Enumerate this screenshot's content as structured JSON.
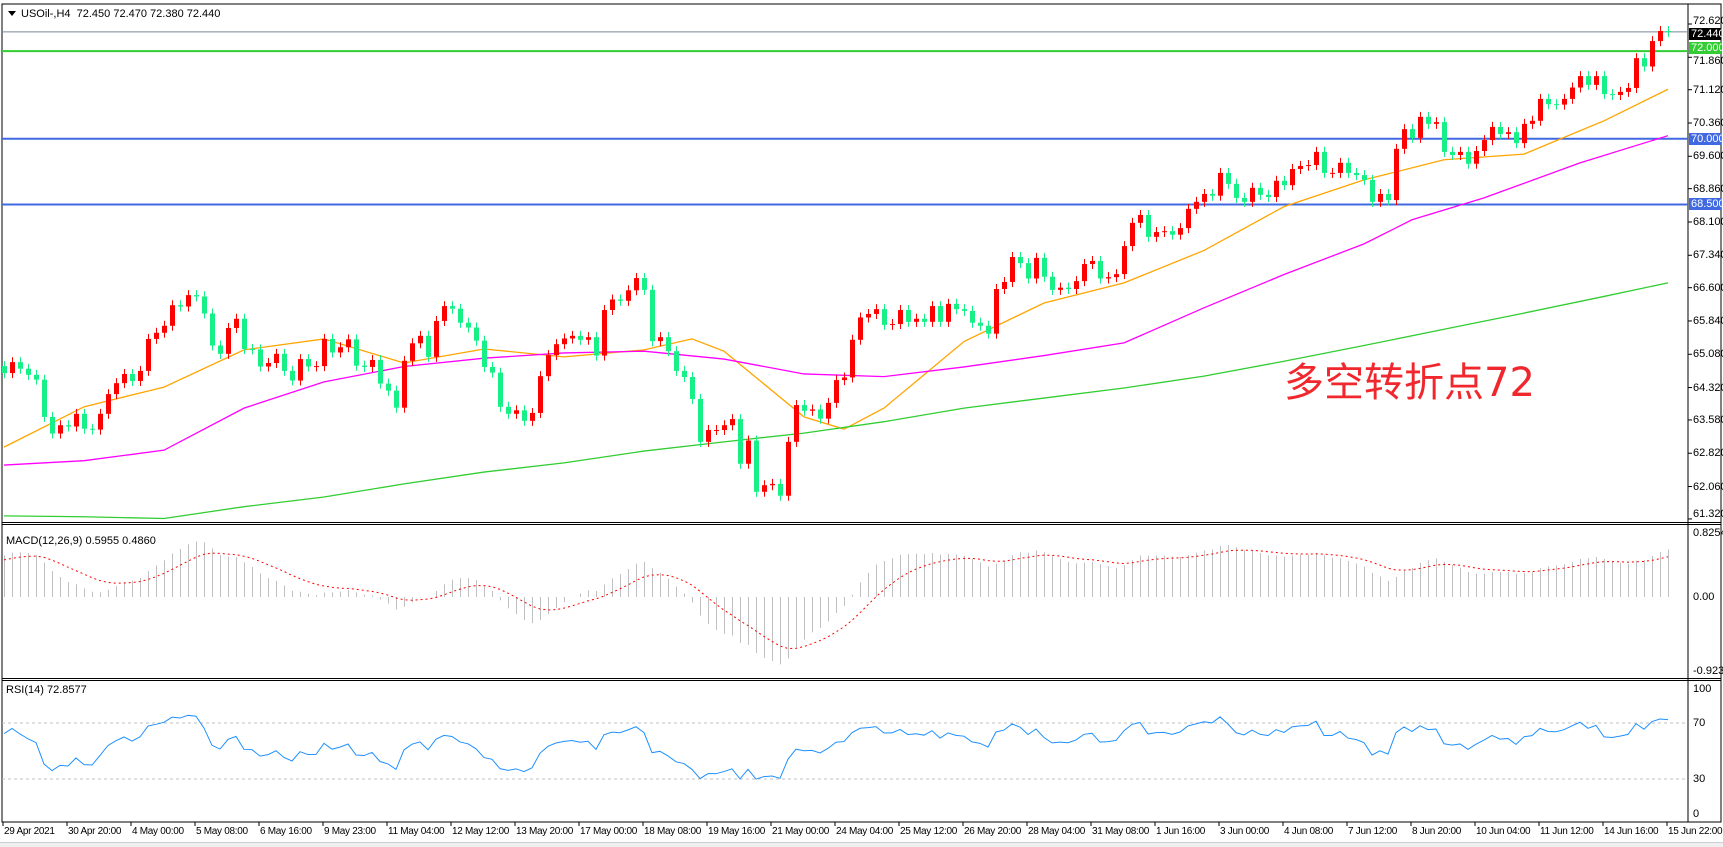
{
  "header": {
    "symbol_timeframe": "USOil-,H4",
    "ohlc_text": "72.450 72.470 72.380 72.440"
  },
  "annotation": "多空转折点72",
  "colors": {
    "bull_candle": "#ff0000",
    "bear_candle": "#17ef87",
    "ma_fast": "#ffa500",
    "ma_mid": "#ff00ff",
    "ma_slow": "#32cd32",
    "level_green": "#32cd32",
    "level_blue": "#4169e1",
    "price_line": "#778899",
    "macd_hist": "#c0c0c0",
    "macd_signal": "#ff0000",
    "rsi_line": "#1e90ff",
    "annotation": "#f0282d"
  },
  "chart_data": {
    "type": "candlestick",
    "title": "USOil-,H4",
    "first_open": 64.81,
    "close": [
      64.65,
      64.9,
      64.75,
      64.61,
      64.5,
      63.65,
      63.27,
      63.46,
      63.43,
      63.72,
      63.38,
      63.36,
      63.72,
      64.17,
      64.42,
      64.63,
      64.47,
      64.7,
      65.43,
      65.57,
      65.73,
      66.2,
      66.17,
      66.43,
      66.4,
      66.01,
      65.28,
      65.09,
      65.68,
      65.89,
      65.2,
      65.19,
      64.8,
      64.88,
      65.09,
      64.7,
      64.48,
      64.97,
      64.8,
      64.81,
      65.43,
      65.12,
      65.24,
      65.42,
      64.82,
      64.79,
      64.95,
      64.41,
      64.25,
      63.86,
      64.93,
      65.33,
      65.5,
      65.02,
      65.84,
      66.18,
      66.12,
      65.8,
      65.69,
      65.39,
      64.79,
      64.66,
      63.88,
      63.72,
      63.8,
      63.56,
      63.74,
      64.58,
      65.06,
      65.31,
      65.44,
      65.5,
      65.41,
      65.47,
      65.05,
      66.09,
      66.33,
      66.3,
      66.54,
      66.82,
      66.55,
      65.38,
      65.47,
      65.15,
      64.7,
      64.56,
      64.06,
      63.08,
      63.35,
      63.35,
      63.46,
      63.6,
      62.58,
      63.11,
      61.94,
      62.09,
      62.12,
      61.85,
      63.08,
      63.92,
      63.79,
      63.82,
      63.61,
      63.97,
      64.49,
      64.55,
      65.41,
      65.92,
      66.0,
      66.11,
      65.75,
      65.77,
      66.09,
      65.82,
      65.89,
      65.82,
      66.18,
      65.82,
      66.23,
      66.11,
      66.07,
      65.8,
      65.73,
      65.55,
      66.57,
      66.73,
      67.3,
      67.16,
      66.81,
      67.28,
      66.85,
      66.55,
      66.6,
      66.57,
      66.75,
      67.14,
      67.21,
      66.81,
      66.84,
      66.91,
      67.55,
      68.08,
      68.26,
      67.76,
      67.87,
      67.89,
      67.81,
      67.96,
      68.4,
      68.56,
      68.74,
      68.7,
      69.22,
      68.97,
      68.65,
      68.56,
      68.88,
      68.72,
      68.67,
      69.04,
      68.94,
      69.31,
      69.38,
      69.4,
      69.7,
      69.22,
      69.22,
      69.45,
      69.22,
      69.17,
      69.06,
      68.56,
      68.74,
      68.6,
      69.77,
      70.22,
      70.02,
      70.5,
      70.34,
      70.38,
      69.7,
      69.63,
      69.7,
      69.43,
      69.72,
      69.97,
      70.27,
      70.11,
      70.15,
      69.9,
      70.34,
      70.41,
      70.91,
      70.79,
      70.78,
      70.91,
      71.17,
      71.43,
      71.23,
      71.43,
      71.02,
      71.0,
      71.07,
      71.16,
      71.84,
      71.65,
      72.23,
      72.46,
      72.44
    ],
    "last_price": "72.440",
    "y_ticks": [
      "72.620",
      "71.860",
      "71.120",
      "70.360",
      "69.600",
      "68.860",
      "68.100",
      "67.340",
      "66.600",
      "65.840",
      "65.080",
      "64.320",
      "63.580",
      "62.820",
      "62.060",
      "61.320"
    ],
    "ylim": [
      61.32,
      72.62
    ],
    "x_ticks": [
      "29 Apr 2021",
      "30 Apr 20:00",
      "4 May 00:00",
      "5 May 08:00",
      "6 May 16:00",
      "9 May 23:00",
      "11 May 04:00",
      "12 May 12:00",
      "13 May 20:00",
      "17 May 00:00",
      "18 May 08:00",
      "19 May 16:00",
      "21 May 00:00",
      "24 May 04:00",
      "25 May 12:00",
      "26 May 20:00",
      "28 May 04:00",
      "31 May 08:00",
      "1 Jun 16:00",
      "3 Jun 00:00",
      "4 Jun 08:00",
      "7 Jun 12:00",
      "8 Jun 20:00",
      "10 Jun 04:00",
      "11 Jun 12:00",
      "14 Jun 16:00",
      "15 Jun 22:00"
    ],
    "levels": [
      {
        "value": 72.0,
        "label": "72.000",
        "color": "#32cd32"
      },
      {
        "value": 70.0,
        "label": "70.000",
        "color": "#4169e1"
      },
      {
        "value": 68.5,
        "label": "68.500",
        "color": "#4169e1"
      }
    ],
    "moving_averages": [
      {
        "color": "#ffa500",
        "points": [
          [
            0,
            62.96
          ],
          [
            10,
            63.88
          ],
          [
            20,
            64.33
          ],
          [
            30,
            65.18
          ],
          [
            40,
            65.43
          ],
          [
            50,
            64.88
          ],
          [
            60,
            65.2
          ],
          [
            70,
            65.02
          ],
          [
            80,
            65.18
          ],
          [
            86,
            65.43
          ],
          [
            90,
            65.15
          ],
          [
            100,
            63.65
          ],
          [
            105,
            63.37
          ],
          [
            110,
            63.85
          ],
          [
            120,
            65.37
          ],
          [
            130,
            66.25
          ],
          [
            140,
            66.71
          ],
          [
            150,
            67.45
          ],
          [
            160,
            68.45
          ],
          [
            170,
            69.06
          ],
          [
            180,
            69.52
          ],
          [
            190,
            69.65
          ],
          [
            200,
            70.41
          ],
          [
            208,
            71.13
          ]
        ]
      },
      {
        "color": "#ff00ff",
        "points": [
          [
            0,
            62.55
          ],
          [
            10,
            62.65
          ],
          [
            20,
            62.89
          ],
          [
            30,
            63.85
          ],
          [
            40,
            64.45
          ],
          [
            50,
            64.8
          ],
          [
            60,
            64.99
          ],
          [
            70,
            65.11
          ],
          [
            80,
            65.15
          ],
          [
            90,
            64.97
          ],
          [
            100,
            64.63
          ],
          [
            110,
            64.57
          ],
          [
            120,
            64.79
          ],
          [
            130,
            65.05
          ],
          [
            140,
            65.34
          ],
          [
            150,
            66.14
          ],
          [
            160,
            66.9
          ],
          [
            170,
            67.6
          ],
          [
            176,
            68.15
          ],
          [
            185,
            68.65
          ],
          [
            197,
            69.45
          ],
          [
            208,
            70.07
          ]
        ]
      },
      {
        "color": "#32cd32",
        "points": [
          [
            0,
            61.39
          ],
          [
            10,
            61.37
          ],
          [
            20,
            61.33
          ],
          [
            30,
            61.6
          ],
          [
            40,
            61.82
          ],
          [
            50,
            62.12
          ],
          [
            60,
            62.39
          ],
          [
            70,
            62.6
          ],
          [
            80,
            62.87
          ],
          [
            90,
            63.08
          ],
          [
            100,
            63.28
          ],
          [
            110,
            63.54
          ],
          [
            120,
            63.85
          ],
          [
            130,
            64.08
          ],
          [
            140,
            64.31
          ],
          [
            150,
            64.58
          ],
          [
            160,
            64.92
          ],
          [
            170,
            65.28
          ],
          [
            180,
            65.65
          ],
          [
            190,
            66.02
          ],
          [
            200,
            66.4
          ],
          [
            208,
            66.71
          ]
        ]
      }
    ],
    "macd": {
      "label": "MACD(12,26,9) 0.5955 0.4860",
      "y_ticks": [
        "0.8254",
        "0.00",
        "-0.9234"
      ],
      "ylim": [
        -0.9234,
        0.8254
      ]
    },
    "rsi": {
      "label": "RSI(14) 72.8577",
      "y_ticks": [
        "100",
        "70",
        "30",
        "0"
      ],
      "levels": [
        70,
        30
      ],
      "ylim": [
        0,
        100
      ]
    }
  }
}
